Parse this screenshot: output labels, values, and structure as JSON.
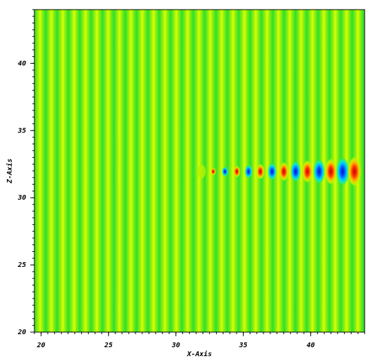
{
  "chart_data": {
    "type": "heatmap",
    "x_label": "X-Axis",
    "y_label": "Z-Axis",
    "xlim": [
      19.5,
      44
    ],
    "ylim": [
      20,
      44
    ],
    "xticks": [
      20,
      25,
      30,
      35,
      40
    ],
    "yticks": [
      20,
      25,
      30,
      35,
      40
    ],
    "minor_tick_step": 0.5
  }
}
